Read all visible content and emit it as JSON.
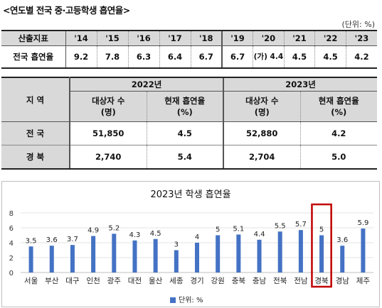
{
  "heading": "<연도별 전국 중·고등학생 흡연율>",
  "unit": "(단위: %)",
  "yearly": {
    "label": "산출지표",
    "row_label": "전국 흡연율",
    "years": [
      "'14",
      "'15",
      "'16",
      "'17",
      "'18",
      "'19",
      "'20",
      "'21",
      "'22",
      "'23"
    ],
    "values": [
      "9.2",
      "7.8",
      "6.3",
      "6.4",
      "6.7",
      "6.7",
      "(가) 4.4",
      "4.5",
      "4.5",
      "4.2"
    ]
  },
  "regional": {
    "region_header": "지 역",
    "year_a": "2022년",
    "year_b": "2023년",
    "col_count_l1": "대상자 수",
    "col_count_l2": "(명)",
    "col_rate_l1": "현재 흡연율",
    "col_rate_l2": "(%)",
    "rows": [
      {
        "region": "전 국",
        "count_a": "51,850",
        "rate_a": "4.5",
        "count_b": "52,880",
        "rate_b": "4.2"
      },
      {
        "region": "경 북",
        "count_a": "2,740",
        "rate_a": "5.4",
        "count_b": "2,704",
        "rate_b": "5.0"
      }
    ]
  },
  "legend_label": "단위: %",
  "colors": {
    "bar": "#4472c4",
    "highlight": "#c00000",
    "header_bg": "#d9d9d9"
  },
  "chart_data": {
    "type": "bar",
    "title": "2023년 학생 흡연율",
    "categories": [
      "서울",
      "부산",
      "대구",
      "인천",
      "광주",
      "대전",
      "울산",
      "세종",
      "경기",
      "강원",
      "충북",
      "충남",
      "전북",
      "전남",
      "경북",
      "경남",
      "제주"
    ],
    "series": [
      {
        "name": "단위: %",
        "values": [
          3.5,
          3.6,
          3.7,
          4.9,
          5.2,
          4.3,
          4.5,
          3,
          4,
          5,
          5.1,
          4.4,
          5.5,
          5.7,
          5,
          3.6,
          5.9
        ]
      }
    ],
    "ylim": [
      0,
      8
    ],
    "yticks": [
      0,
      2,
      4,
      6,
      8
    ],
    "highlight": "경북",
    "grid": true,
    "legend_position": "bottom"
  }
}
